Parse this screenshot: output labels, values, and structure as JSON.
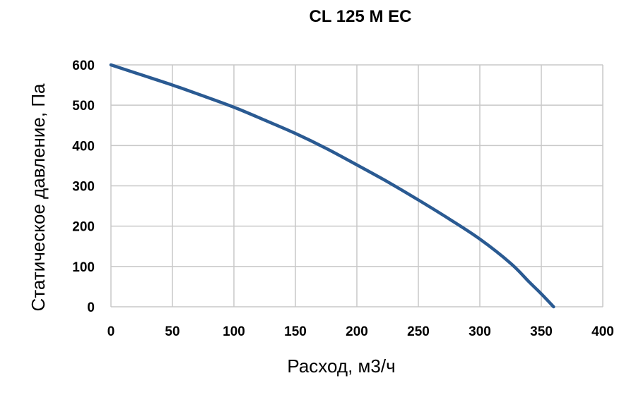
{
  "chart_data": {
    "type": "line",
    "title": "CL 125 M EC",
    "xlabel": "Расход, м3/ч",
    "ylabel": "Статическое давление, Па",
    "xlim": [
      0,
      400
    ],
    "ylim": [
      0,
      600
    ],
    "x_ticks": [
      0,
      50,
      100,
      150,
      200,
      250,
      300,
      350,
      400
    ],
    "y_ticks": [
      0,
      100,
      200,
      300,
      400,
      500,
      600
    ],
    "grid": true,
    "series": [
      {
        "color": "#2a5a92",
        "x": [
          0,
          25,
          50,
          75,
          100,
          125,
          150,
          175,
          200,
          225,
          250,
          275,
          300,
          325,
          340,
          350,
          360
        ],
        "y": [
          600,
          575,
          550,
          523,
          495,
          463,
          430,
          393,
          352,
          310,
          265,
          218,
          168,
          108,
          62,
          32,
          0
        ]
      }
    ]
  }
}
